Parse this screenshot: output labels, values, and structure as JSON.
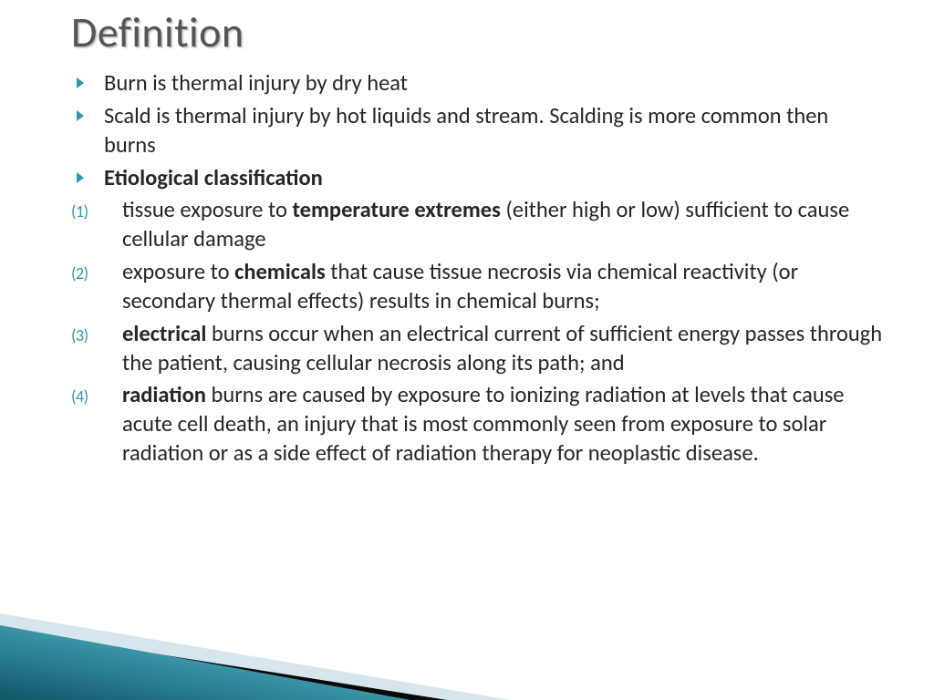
{
  "title": "Definition",
  "bullets": [
    {
      "type": "arrow",
      "runs": [
        {
          "t": "Burn is thermal injury by dry heat"
        }
      ]
    },
    {
      "type": "arrow",
      "runs": [
        {
          "t": "Scald is thermal injury by hot liquids and stream. Scalding is more common then burns"
        }
      ]
    },
    {
      "type": "arrow",
      "runs": [
        {
          "t": "Etiological classification",
          "b": true
        }
      ]
    },
    {
      "type": "num",
      "n": "(1)",
      "runs": [
        {
          "t": "tissue exposure to "
        },
        {
          "t": "temperature extremes",
          "b": true
        },
        {
          "t": " (either high or low) sufficient to cause cellular damage"
        }
      ]
    },
    {
      "type": "num",
      "n": "(2)",
      "runs": [
        {
          "t": "exposure to "
        },
        {
          "t": "chemicals",
          "b": true
        },
        {
          "t": " that cause tissue necrosis via chemical reactivity (or secondary thermal effects) results in chemical burns;"
        }
      ]
    },
    {
      "type": "num",
      "n": "(3)",
      "runs": [
        {
          "t": "electrical",
          "b": true
        },
        {
          "t": " burns occur when an electrical current of sufficient energy passes through the patient, causing cellular necrosis along its path; and"
        }
      ]
    },
    {
      "type": "num",
      "n": "(4)",
      "runs": [
        {
          "t": "radiation",
          "b": true
        },
        {
          "t": " burns are caused by exposure to ionizing radiation at levels that cause acute cell death, an injury that is most commonly seen from exposure to solar radiation or as a side effect of radiation therapy for neoplastic disease."
        }
      ]
    }
  ],
  "colors": {
    "accent": "#2e97a8",
    "title_color": "#555558",
    "text_color": "#262626",
    "triangle_dark_a": "#0f3c4a",
    "triangle_dark_b": "#4aa7b8",
    "triangle_light": "#d7e6ec",
    "triangle_black": "#0a0a0a"
  }
}
